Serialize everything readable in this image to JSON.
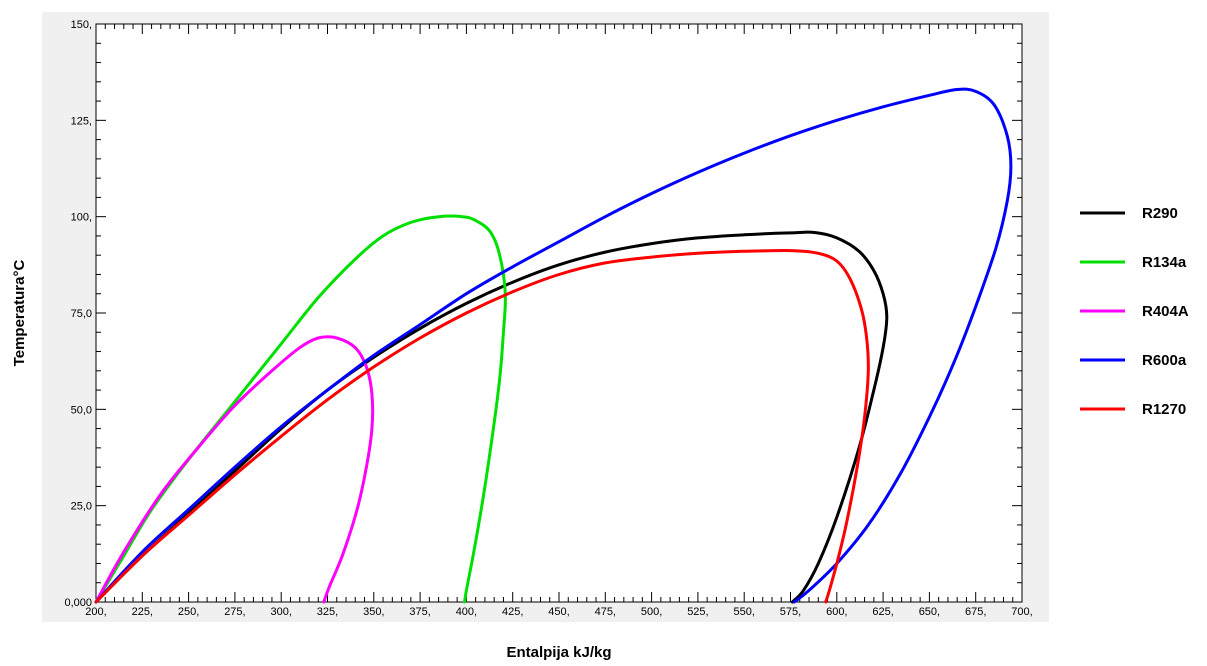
{
  "chart_data": {
    "type": "line",
    "title": "",
    "xlabel": "Entalpija  kJ/kg",
    "ylabel": "Temperatura°C",
    "xlim": [
      200,
      700
    ],
    "ylim": [
      0,
      150
    ],
    "x_ticks": [
      200,
      225,
      250,
      275,
      300,
      325,
      350,
      375,
      400,
      425,
      450,
      475,
      500,
      525,
      550,
      575,
      600,
      625,
      650,
      675,
      700
    ],
    "x_tick_labels": [
      "200,",
      "225,",
      "250,",
      "275,",
      "300,",
      "325,",
      "350,",
      "375,",
      "400,",
      "425,",
      "450,",
      "475,",
      "500,",
      "525,",
      "550,",
      "575,",
      "600,",
      "625,",
      "650,",
      "675,",
      "700,"
    ],
    "y_ticks": [
      0,
      25,
      50,
      75,
      100,
      125,
      150
    ],
    "y_tick_labels": [
      "0,000",
      "25,0",
      "50,0",
      "75,0",
      "100,",
      "125,",
      "150,"
    ],
    "grid": false,
    "legend_position": "right",
    "plot_background": "#ffffff",
    "outer_background": "#f0f0f0",
    "series": [
      {
        "name": "R290",
        "color": "#000000",
        "points": [
          [
            200,
            0
          ],
          [
            225,
            12
          ],
          [
            250,
            23
          ],
          [
            275,
            34
          ],
          [
            300,
            45
          ],
          [
            325,
            55
          ],
          [
            350,
            63.5
          ],
          [
            375,
            71
          ],
          [
            400,
            77.5
          ],
          [
            425,
            83
          ],
          [
            450,
            87.5
          ],
          [
            475,
            90.8
          ],
          [
            500,
            93
          ],
          [
            525,
            94.5
          ],
          [
            550,
            95.3
          ],
          [
            575,
            95.8
          ],
          [
            588,
            95.9
          ],
          [
            600,
            94.5
          ],
          [
            612,
            91
          ],
          [
            620,
            86
          ],
          [
            625,
            80
          ],
          [
            627,
            74
          ],
          [
            625,
            66
          ],
          [
            620,
            55
          ],
          [
            612,
            40
          ],
          [
            600,
            22
          ],
          [
            590,
            10
          ],
          [
            582,
            3
          ],
          [
            576,
            0
          ]
        ]
      },
      {
        "name": "R134a",
        "color": "#00e000",
        "points": [
          [
            200,
            0
          ],
          [
            215,
            12
          ],
          [
            230,
            24
          ],
          [
            250,
            37
          ],
          [
            275,
            52
          ],
          [
            300,
            67
          ],
          [
            320,
            79
          ],
          [
            340,
            89
          ],
          [
            355,
            95
          ],
          [
            370,
            98.5
          ],
          [
            385,
            100
          ],
          [
            398,
            100
          ],
          [
            405,
            99
          ],
          [
            413,
            96
          ],
          [
            418,
            90
          ],
          [
            421,
            80
          ],
          [
            420,
            70
          ],
          [
            418,
            58
          ],
          [
            414,
            43
          ],
          [
            409,
            27
          ],
          [
            404,
            13
          ],
          [
            400,
            3
          ],
          [
            399,
            0
          ]
        ]
      },
      {
        "name": "R404A",
        "color": "#ff00ff",
        "points": [
          [
            200,
            0
          ],
          [
            215,
            13
          ],
          [
            235,
            28
          ],
          [
            255,
            40
          ],
          [
            275,
            51
          ],
          [
            295,
            60
          ],
          [
            310,
            66
          ],
          [
            320,
            68.5
          ],
          [
            330,
            68.5
          ],
          [
            340,
            66
          ],
          [
            346,
            61
          ],
          [
            349,
            54
          ],
          [
            349,
            45
          ],
          [
            346,
            35
          ],
          [
            341,
            24
          ],
          [
            333,
            12
          ],
          [
            326,
            4
          ],
          [
            323,
            0
          ]
        ]
      },
      {
        "name": "R600a",
        "color": "#0000ff",
        "points": [
          [
            200,
            0
          ],
          [
            225,
            13
          ],
          [
            250,
            24
          ],
          [
            275,
            35
          ],
          [
            300,
            45.5
          ],
          [
            325,
            55
          ],
          [
            350,
            64
          ],
          [
            375,
            72
          ],
          [
            400,
            80
          ],
          [
            425,
            87
          ],
          [
            450,
            93.5
          ],
          [
            475,
            100
          ],
          [
            500,
            106
          ],
          [
            525,
            111.5
          ],
          [
            550,
            116.5
          ],
          [
            575,
            121
          ],
          [
            600,
            125
          ],
          [
            625,
            128.5
          ],
          [
            650,
            131.5
          ],
          [
            665,
            133
          ],
          [
            675,
            132.5
          ],
          [
            685,
            129
          ],
          [
            692,
            121
          ],
          [
            694,
            113
          ],
          [
            692,
            104
          ],
          [
            686,
            92
          ],
          [
            676,
            78
          ],
          [
            664,
            63
          ],
          [
            650,
            48
          ],
          [
            634,
            33
          ],
          [
            617,
            20
          ],
          [
            600,
            10
          ],
          [
            585,
            3
          ],
          [
            577,
            0
          ]
        ]
      },
      {
        "name": "R1270",
        "color": "#ff0000",
        "points": [
          [
            200,
            0
          ],
          [
            225,
            12
          ],
          [
            250,
            22.5
          ],
          [
            275,
            33
          ],
          [
            300,
            43
          ],
          [
            325,
            52.5
          ],
          [
            350,
            61
          ],
          [
            375,
            68.5
          ],
          [
            400,
            75
          ],
          [
            425,
            80.5
          ],
          [
            450,
            85
          ],
          [
            475,
            88
          ],
          [
            500,
            89.5
          ],
          [
            525,
            90.5
          ],
          [
            550,
            91
          ],
          [
            575,
            91.2
          ],
          [
            590,
            90.5
          ],
          [
            600,
            88.5
          ],
          [
            607,
            84
          ],
          [
            613,
            76.5
          ],
          [
            616,
            69
          ],
          [
            617,
            60
          ],
          [
            615,
            48
          ],
          [
            611,
            35
          ],
          [
            605,
            20
          ],
          [
            600,
            10
          ],
          [
            596,
            3
          ],
          [
            594,
            0
          ]
        ]
      }
    ]
  }
}
